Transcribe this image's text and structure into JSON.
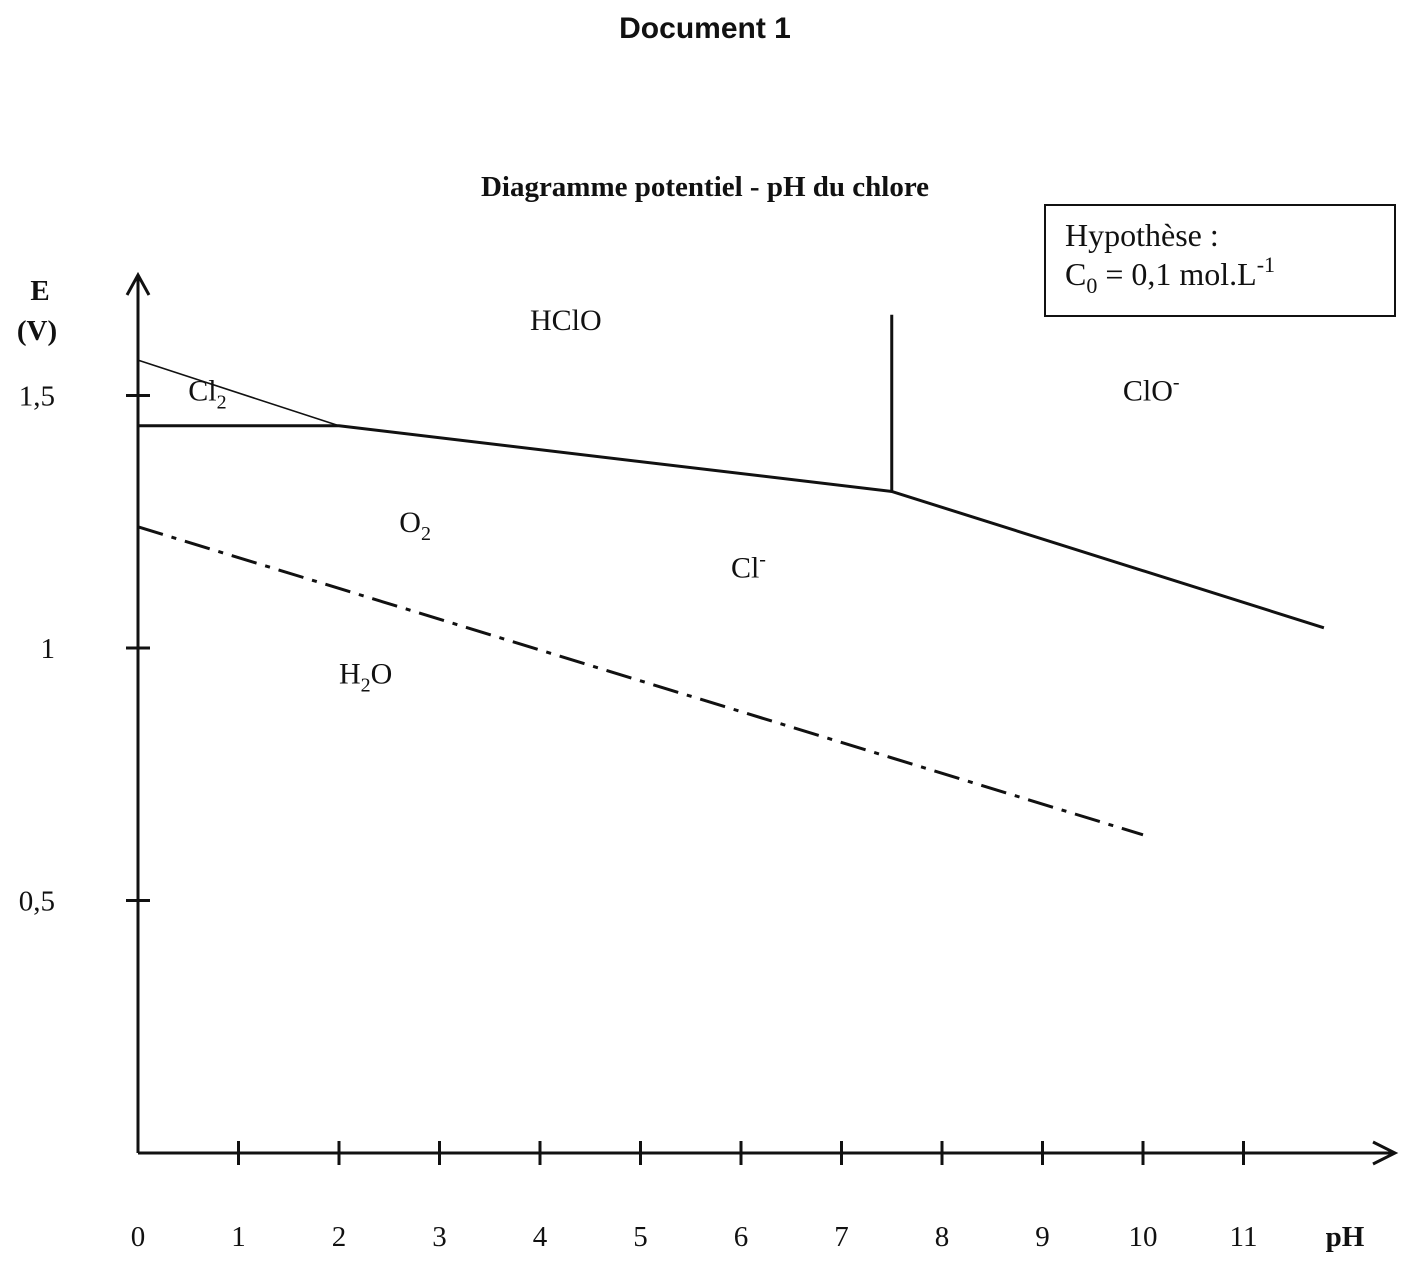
{
  "document": {
    "title": "Document 1"
  },
  "chart_data": {
    "type": "line",
    "title": "Diagramme potentiel - pH du chlore",
    "xlabel": "pH",
    "ylabel": "E",
    "ylabel_unit": "(V)",
    "xlim": [
      0,
      12.4
    ],
    "ylim": [
      0,
      1.6
    ],
    "x_ticks": [
      0,
      1,
      2,
      3,
      4,
      5,
      6,
      7,
      8,
      9,
      10,
      11
    ],
    "x_tick_labels": [
      "0",
      "1",
      "2",
      "3",
      "4",
      "5",
      "6",
      "7",
      "8",
      "9",
      "10",
      "11"
    ],
    "y_ticks": [
      0.5,
      1,
      1.5
    ],
    "y_tick_labels": [
      "0,5",
      "1",
      "1,5"
    ],
    "series": [
      {
        "style": "thin",
        "points": [
          [
            0,
            1.57
          ],
          [
            2,
            1.44
          ]
        ]
      },
      {
        "style": "thick",
        "points": [
          [
            0,
            1.44
          ],
          [
            2,
            1.44
          ],
          [
            7.5,
            1.31
          ],
          [
            11.8,
            1.04
          ]
        ]
      },
      {
        "style": "thick",
        "points": [
          [
            7.5,
            1.31
          ],
          [
            7.5,
            1.66
          ]
        ]
      },
      {
        "style": "dashdot",
        "points": [
          [
            0,
            1.24
          ],
          [
            10,
            0.63
          ]
        ]
      }
    ],
    "regions": [
      {
        "text": "HClO",
        "x": 3.9,
        "y": 1.63
      },
      {
        "text": "Cl",
        "sub": "2",
        "x": 0.5,
        "y": 1.49
      },
      {
        "text": "ClO",
        "sup": "-",
        "x": 9.8,
        "y": 1.49
      },
      {
        "text": "O",
        "sub": "2",
        "x": 2.6,
        "y": 1.23
      },
      {
        "text": "Cl",
        "sup": "-",
        "x": 5.9,
        "y": 1.14
      },
      {
        "text": "H",
        "sub": "2",
        "after": "O",
        "x": 2.0,
        "y": 0.93
      }
    ],
    "annotation": {
      "line1": "Hypothèse :",
      "line2_main": "C",
      "line2_sub": "0",
      "line2_rest": " = 0,1 mol.L",
      "line2_sup": "-1"
    }
  }
}
